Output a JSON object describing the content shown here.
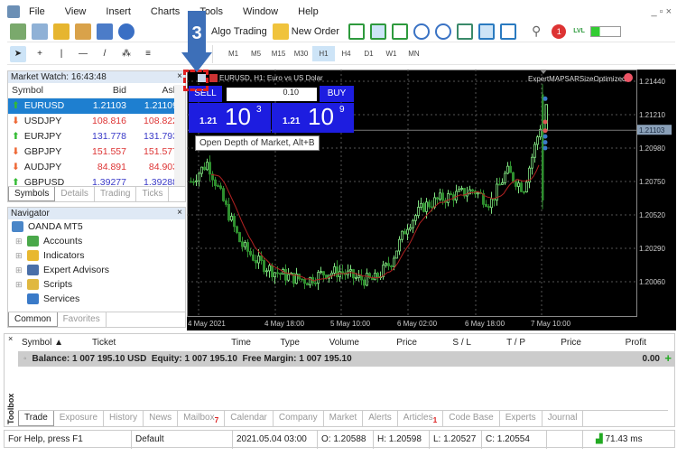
{
  "menu": {
    "items": [
      "File",
      "View",
      "Insert",
      "Charts",
      "Tools",
      "Window",
      "Help"
    ]
  },
  "toolbar": {
    "algo_trading": "Algo Trading",
    "new_order": "New Order",
    "notification_count": "1",
    "lvl_label": "LVL",
    "timeframes": [
      "M1",
      "M5",
      "M15",
      "M30",
      "H1",
      "H4",
      "D1",
      "W1",
      "MN"
    ],
    "selected_timeframe": "H1"
  },
  "market_watch": {
    "title": "Market Watch: 16:43:48",
    "columns": [
      "Symbol",
      "Bid",
      "Ask"
    ],
    "rows": [
      {
        "symbol": "EURUSD",
        "bid": "1.21103",
        "ask": "1.21109",
        "dir": "up"
      },
      {
        "symbol": "USDJPY",
        "bid": "108.816",
        "ask": "108.822",
        "dir": "down"
      },
      {
        "symbol": "EURJPY",
        "bid": "131.778",
        "ask": "131.793",
        "dir": "up"
      },
      {
        "symbol": "GBPJPY",
        "bid": "151.557",
        "ask": "151.577",
        "dir": "down"
      },
      {
        "symbol": "AUDJPY",
        "bid": "84.891",
        "ask": "84.903",
        "dir": "down"
      },
      {
        "symbol": "GBPUSD",
        "bid": "1.39277",
        "ask": "1.39288",
        "dir": "up"
      }
    ],
    "tabs": [
      "Symbols",
      "Details",
      "Trading",
      "Ticks"
    ]
  },
  "navigator": {
    "title": "Navigator",
    "root": "OANDA MT5",
    "items": [
      "Accounts",
      "Indicators",
      "Expert Advisors",
      "Scripts",
      "Services"
    ],
    "tabs": [
      "Common",
      "Favorites"
    ]
  },
  "chart": {
    "title": "EURUSD, H1:  Euro vs US Dolar",
    "expert": "ExpertMAPSARSizeOptimized",
    "current_price": "1.21103",
    "price_ticks": [
      "1.21440",
      "1.21210",
      "1.20980",
      "1.20750",
      "1.20520",
      "1.20290",
      "1.20060"
    ],
    "time_ticks": [
      "4 May 2021",
      "4 May 18:00",
      "5 May 10:00",
      "6 May 02:00",
      "6 May 18:00",
      "7 May 10:00"
    ],
    "price_path": [
      1.2075,
      1.2088,
      1.206,
      1.2032,
      1.202,
      1.2013,
      1.2009,
      1.2007,
      1.2012,
      1.2013,
      1.2008,
      1.2007,
      1.2019,
      1.2045,
      1.2058,
      1.2063,
      1.2066,
      1.2069,
      1.206,
      1.2082,
      1.207,
      1.2113
    ],
    "colors": {
      "bull": "#7fe07f",
      "bear": "#2f8f2f",
      "ma": "#b22222",
      "bg": "#000000",
      "grid": "#555555"
    }
  },
  "one_click": {
    "sell": "SELL",
    "buy": "BUY",
    "volume": "0.10",
    "sell_big": "10",
    "sell_small": "1.21",
    "sell_sup": "3",
    "buy_big": "10",
    "buy_small": "1.21",
    "buy_sup": "9"
  },
  "tooltip": "Open Depth of Market, Alt+B",
  "step_badge": "3",
  "toolbox": {
    "label": "Toolbox",
    "columns": [
      "Symbol ▲",
      "Ticket",
      "Time",
      "Type",
      "Volume",
      "Price",
      "S / L",
      "T / P",
      "Price",
      "Profit"
    ],
    "balance": "Balance: 1 007 195.10 USD  Equity: 1 007 195.10  Free Margin: 1 007 195.10",
    "profit": "0.00",
    "tabs": [
      {
        "label": "Trade"
      },
      {
        "label": "Exposure"
      },
      {
        "label": "History"
      },
      {
        "label": "News"
      },
      {
        "label": "Mailbox",
        "badge": "7"
      },
      {
        "label": "Calendar"
      },
      {
        "label": "Company"
      },
      {
        "label": "Market"
      },
      {
        "label": "Alerts"
      },
      {
        "label": "Articles",
        "badge": "1"
      },
      {
        "label": "Code Base"
      },
      {
        "label": "Experts"
      },
      {
        "label": "Journal"
      }
    ]
  },
  "status": {
    "help": "For Help, press F1",
    "profile": "Default",
    "datetime": "2021.05.04 03:00",
    "open": "O: 1.20588",
    "high": "H: 1.20598",
    "low": "L: 1.20527",
    "close": "C: 1.20554",
    "ping": "71.43 ms"
  }
}
